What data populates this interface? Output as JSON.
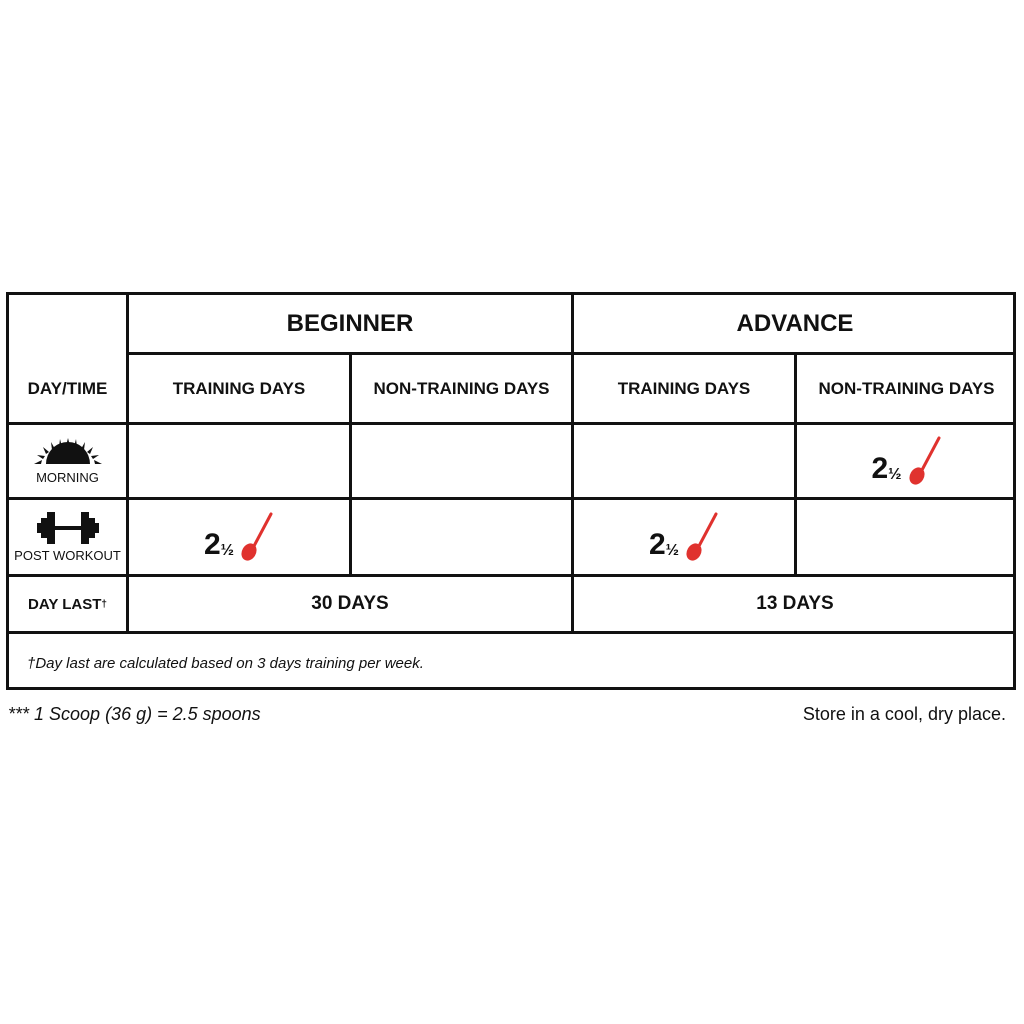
{
  "header": {
    "beginner": "BEGINNER",
    "advance": "ADVANCE"
  },
  "subheader": {
    "day_time": "DAY/TIME",
    "training": "TRAINING DAYS",
    "non_training": "NON-TRAINING DAYS"
  },
  "rows": {
    "morning": {
      "label": "MORNING",
      "icon": "sunrise-icon"
    },
    "post_workout": {
      "label": "POST WORKOUT",
      "icon": "dumbbell-icon"
    }
  },
  "dose": {
    "whole": "2",
    "fraction": "½",
    "icon": "spoon-icon",
    "spoon_color": "#e0322e"
  },
  "day_last": {
    "label": "DAY LAST",
    "dagger": "†",
    "beginner": "30 DAYS",
    "advance": "13 DAYS"
  },
  "note": "†Day last are calculated based on 3 days training per week.",
  "footer": {
    "scoop": "*** 1 Scoop (36 g) = 2.5 spoons",
    "storage": "Store in a cool, dry place."
  }
}
